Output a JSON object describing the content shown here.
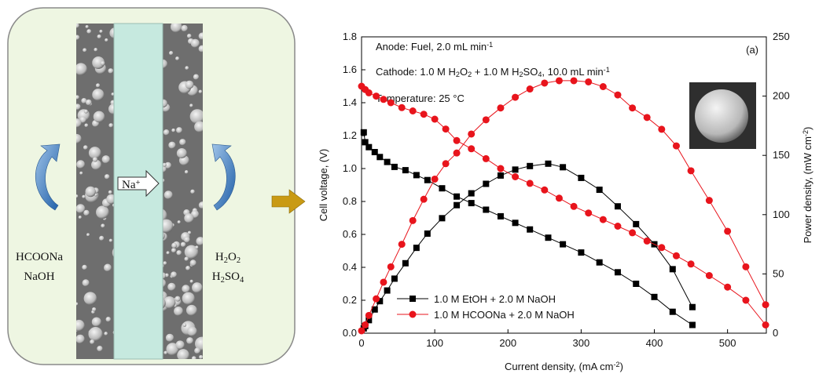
{
  "diagram": {
    "labels": [
      {
        "parts": [
          "HCOONa"
        ]
      },
      {
        "parts": [
          "NaOH"
        ]
      },
      {
        "parts": [
          "H",
          {
            "sub": "2"
          },
          "O",
          {
            "sub": "2"
          }
        ]
      },
      {
        "parts": [
          "H",
          {
            "sub": "2"
          },
          "SO",
          {
            "sub": "4"
          }
        ]
      },
      {
        "parts": [
          "Na",
          {
            "sup": "+"
          }
        ]
      }
    ]
  },
  "chart_data": {
    "type": "line",
    "panel_label": "(a)",
    "annotations": [
      {
        "parts": [
          "Anode: Fuel, 2.0 mL min",
          {
            "sup": "-1"
          }
        ]
      },
      {
        "parts": [
          "Cathode: 1.0 M H",
          {
            "sub": "2"
          },
          "O",
          {
            "sub": "2"
          },
          " + 1.0 M H",
          {
            "sub": "2"
          },
          "SO",
          {
            "sub": "4"
          },
          ", 10.0 mL min",
          {
            "sup": "-1"
          }
        ]
      },
      {
        "parts": [
          "Temperature: 25 °C"
        ]
      }
    ],
    "xlabel": {
      "parts": [
        "Current density, (mA cm",
        {
          "sup": "-2"
        },
        ")"
      ]
    },
    "ylabel": {
      "parts": [
        "Cell voltage, (V)"
      ]
    },
    "y2label": {
      "parts": [
        "Power density, (mW cm",
        {
          "sup": "-2"
        },
        ")"
      ]
    },
    "xlim": [
      0,
      553
    ],
    "xticks": [
      0,
      100,
      200,
      300,
      400,
      500
    ],
    "ylim": [
      0,
      1.8
    ],
    "yticks": [
      {
        "value": 0,
        "label": "0.0"
      },
      {
        "value": 0.2,
        "label": "0.2"
      },
      {
        "value": 0.4,
        "label": "0.4"
      },
      {
        "value": 0.6,
        "label": "0.6"
      },
      {
        "value": 0.8,
        "label": "0.8"
      },
      {
        "value": 1.0,
        "label": "1.0"
      },
      {
        "value": 1.2,
        "label": "1.2"
      },
      {
        "value": 1.4,
        "label": "1.4"
      },
      {
        "value": 1.6,
        "label": "1.6"
      },
      {
        "value": 1.8,
        "label": "1.8"
      }
    ],
    "y2lim": [
      0,
      250
    ],
    "y2ticks": [
      0,
      50,
      100,
      150,
      200,
      250
    ],
    "legend": "lower left",
    "series": [
      {
        "name": "1.0 M EtOH + 2.0 M NaOH",
        "color": "#000000",
        "marker": "square",
        "x": [
          3,
          5,
          10,
          18,
          25,
          35,
          45,
          60,
          75,
          90,
          110,
          130,
          150,
          170,
          190,
          210,
          230,
          255,
          275,
          300,
          325,
          350,
          375,
          400,
          425,
          452
        ],
        "values": [
          1.22,
          1.16,
          1.13,
          1.1,
          1.07,
          1.04,
          1.01,
          0.99,
          0.96,
          0.93,
          0.88,
          0.83,
          0.79,
          0.75,
          0.71,
          0.67,
          0.63,
          0.58,
          0.54,
          0.49,
          0.43,
          0.37,
          0.3,
          0.22,
          0.13,
          0.05
        ]
      },
      {
        "color": "#000000",
        "marker": "square",
        "axis": "y2",
        "x": [
          3,
          5,
          10,
          18,
          25,
          35,
          45,
          60,
          75,
          90,
          110,
          130,
          150,
          170,
          190,
          210,
          230,
          255,
          275,
          300,
          325,
          350,
          375,
          400,
          425,
          452
        ],
        "values": [
          4,
          6,
          11,
          20,
          27,
          36,
          46,
          59,
          72,
          84,
          97,
          108,
          118,
          126,
          133,
          138,
          141,
          143,
          140,
          131,
          121,
          107,
          92,
          75,
          54,
          22
        ]
      },
      {
        "name": "1.0 M HCOONa + 2.0 M NaOH",
        "color": "#e8141c",
        "marker": "circle",
        "x": [
          0,
          5,
          10,
          20,
          30,
          40,
          55,
          70,
          85,
          100,
          115,
          130,
          150,
          170,
          190,
          210,
          230,
          250,
          270,
          290,
          310,
          330,
          350,
          370,
          390,
          410,
          430,
          450,
          475,
          500,
          525,
          552
        ],
        "values": [
          1.5,
          1.48,
          1.46,
          1.44,
          1.42,
          1.4,
          1.37,
          1.35,
          1.33,
          1.3,
          1.24,
          1.17,
          1.12,
          1.06,
          1.0,
          0.95,
          0.91,
          0.87,
          0.82,
          0.77,
          0.73,
          0.69,
          0.65,
          0.61,
          0.56,
          0.52,
          0.47,
          0.42,
          0.35,
          0.28,
          0.2,
          0.05
        ]
      },
      {
        "color": "#e8141c",
        "marker": "circle",
        "axis": "y2",
        "x": [
          0,
          5,
          10,
          20,
          30,
          40,
          55,
          70,
          85,
          100,
          115,
          130,
          150,
          170,
          190,
          210,
          230,
          250,
          270,
          290,
          310,
          330,
          350,
          370,
          390,
          410,
          430,
          450,
          475,
          500,
          525,
          552
        ],
        "values": [
          2,
          7,
          15,
          29,
          43,
          56,
          75,
          95,
          113,
          130,
          143,
          152,
          168,
          180,
          190,
          199,
          206,
          211,
          213,
          213,
          212,
          208,
          201,
          190,
          182,
          172,
          158,
          137,
          112,
          86,
          56,
          24
        ]
      }
    ]
  }
}
